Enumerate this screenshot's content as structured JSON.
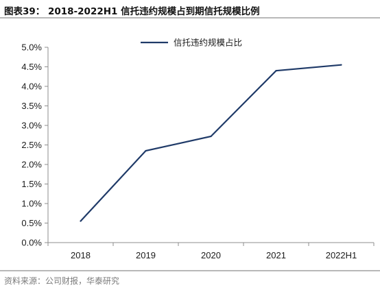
{
  "header": {
    "title": "图表39：  2018-2022H1 信托违约规模占到期信托规模比例"
  },
  "footer": {
    "source": "资料来源：公司财报，华泰研究"
  },
  "colors": {
    "line": "#1f3a68",
    "axis": "#8c8c8c",
    "text": "#1a1a1a"
  },
  "chart_data": {
    "type": "line",
    "title": "",
    "xlabel": "",
    "ylabel": "",
    "categories": [
      "2018",
      "2019",
      "2020",
      "2021",
      "2022H1"
    ],
    "series": [
      {
        "name": "信托违约规模占比",
        "values": [
          0.55,
          2.35,
          2.72,
          4.4,
          4.55
        ]
      }
    ],
    "ylim": [
      0,
      5.0
    ],
    "yticks": [
      0.0,
      0.5,
      1.0,
      1.5,
      2.0,
      2.5,
      3.0,
      3.5,
      4.0,
      4.5,
      5.0
    ],
    "ytick_labels": [
      "0.0%",
      "0.5%",
      "1.0%",
      "1.5%",
      "2.0%",
      "2.5%",
      "3.0%",
      "3.5%",
      "4.0%",
      "4.5%",
      "5.0%"
    ],
    "grid": false,
    "legend_position": "top-center"
  }
}
